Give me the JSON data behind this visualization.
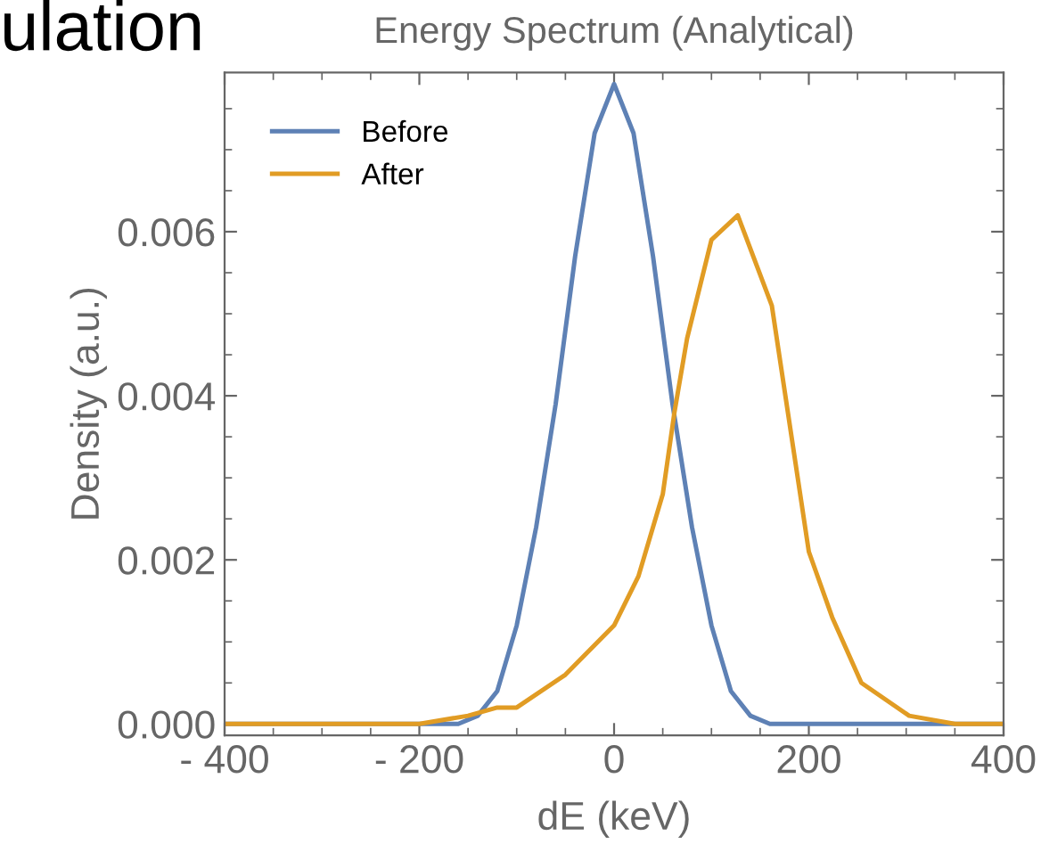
{
  "chart_data": {
    "type": "line",
    "title": "Energy Spectrum (Analytical)",
    "xlabel": "dE (keV)",
    "ylabel": "Density (a.u.)",
    "annotations": [
      "ulation"
    ],
    "xlim": [
      -400,
      400
    ],
    "ylim": [
      -0.00014,
      0.00794
    ],
    "xticks": [
      {
        "value": -400,
        "label": "- 400"
      },
      {
        "value": -200,
        "label": "- 200"
      },
      0,
      200,
      400
    ],
    "yticks": [
      {
        "value": 0,
        "label": "0.000"
      },
      0.002,
      0.004,
      0.006
    ],
    "grid": false,
    "legend": "top left",
    "marker": "none",
    "line_style": "solid",
    "series": [
      {
        "name": "Before",
        "color": "#5e81b5",
        "x": [
          -400,
          -200,
          -160,
          -140,
          -120,
          -100,
          -80,
          -60,
          -40,
          -20,
          0,
          20,
          40,
          60,
          80,
          100,
          120,
          140,
          160,
          200,
          400
        ],
        "values": [
          0,
          0,
          0,
          0.0001,
          0.0004,
          0.0012,
          0.0024,
          0.0039,
          0.0057,
          0.0072,
          0.0078,
          0.0072,
          0.0057,
          0.0039,
          0.0024,
          0.0012,
          0.0004,
          0.0001,
          0,
          0,
          0
        ]
      },
      {
        "name": "After",
        "color": "#e19c24",
        "x": [
          -400,
          -200,
          -150,
          -120,
          -100,
          -50,
          0,
          25,
          50,
          62,
          75,
          100,
          127,
          162,
          200,
          224,
          254,
          303,
          350,
          400
        ],
        "values": [
          0,
          0,
          0.0001,
          0.0002,
          0.0002,
          0.0006,
          0.0012,
          0.0018,
          0.0028,
          0.0038,
          0.0047,
          0.0059,
          0.0062,
          0.0051,
          0.0021,
          0.0013,
          0.0005,
          0.0001,
          0,
          0
        ]
      }
    ]
  }
}
